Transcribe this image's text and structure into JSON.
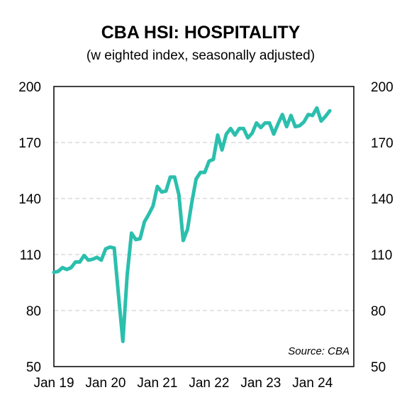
{
  "chart_data": {
    "type": "line",
    "title": "CBA HSI: HOSPITALITY",
    "subtitle": "(w eighted index, seasonally adjusted)",
    "source": "Source:  CBA",
    "y_ticks_left": [
      "200",
      "170",
      "140",
      "110",
      "80",
      "50"
    ],
    "y_ticks_right": [
      "200",
      "170",
      "140",
      "110",
      "80",
      "50"
    ],
    "x_ticks": [
      "Jan 19",
      "Jan 20",
      "Jan 21",
      "Jan 22",
      "Jan 23",
      "Jan 24"
    ],
    "ylim": [
      50,
      200
    ],
    "grid": "horizontal dashed",
    "line_color": "#2bbfad",
    "series": [
      {
        "x": [
          "2019-01",
          "2019-02",
          "2019-03",
          "2019-04",
          "2019-05",
          "2019-06",
          "2019-07",
          "2019-08",
          "2019-09",
          "2019-10",
          "2019-11",
          "2019-12",
          "2020-01",
          "2020-02",
          "2020-03",
          "2020-04",
          "2020-05",
          "2020-06",
          "2020-07",
          "2020-08",
          "2020-09",
          "2020-10",
          "2020-11",
          "2020-12",
          "2021-01",
          "2021-02",
          "2021-03",
          "2021-04",
          "2021-05",
          "2021-06",
          "2021-07",
          "2021-08",
          "2021-09",
          "2021-10",
          "2021-11",
          "2021-12",
          "2022-01",
          "2022-02",
          "2022-03",
          "2022-04",
          "2022-05",
          "2022-06",
          "2022-07",
          "2022-08",
          "2022-09",
          "2022-10",
          "2022-11",
          "2022-12",
          "2023-01",
          "2023-02",
          "2023-03",
          "2023-04",
          "2023-05",
          "2023-06",
          "2023-07",
          "2023-08",
          "2023-09",
          "2023-10",
          "2023-11",
          "2023-12",
          "2024-01",
          "2024-02",
          "2024-03",
          "2024-04",
          "2024-05"
        ],
        "y": [
          100.5,
          101,
          103,
          102,
          103,
          106,
          106,
          109.5,
          107,
          107.5,
          108.5,
          107,
          113,
          114,
          113.5,
          88,
          63.5,
          99,
          121.5,
          118,
          118.5,
          127.5,
          131.5,
          136,
          146.5,
          143.5,
          144,
          151.5,
          151.5,
          142,
          117.5,
          123.5,
          138,
          150.5,
          154,
          154,
          160,
          161,
          174,
          166,
          174.5,
          177.5,
          174,
          177.5,
          177.5,
          172.5,
          175,
          180.5,
          178,
          180.5,
          180.5,
          174.5,
          180,
          185,
          178.5,
          184.5,
          178.5,
          179,
          181,
          185,
          184.5,
          188.5,
          181.5,
          184,
          187
        ]
      }
    ]
  }
}
